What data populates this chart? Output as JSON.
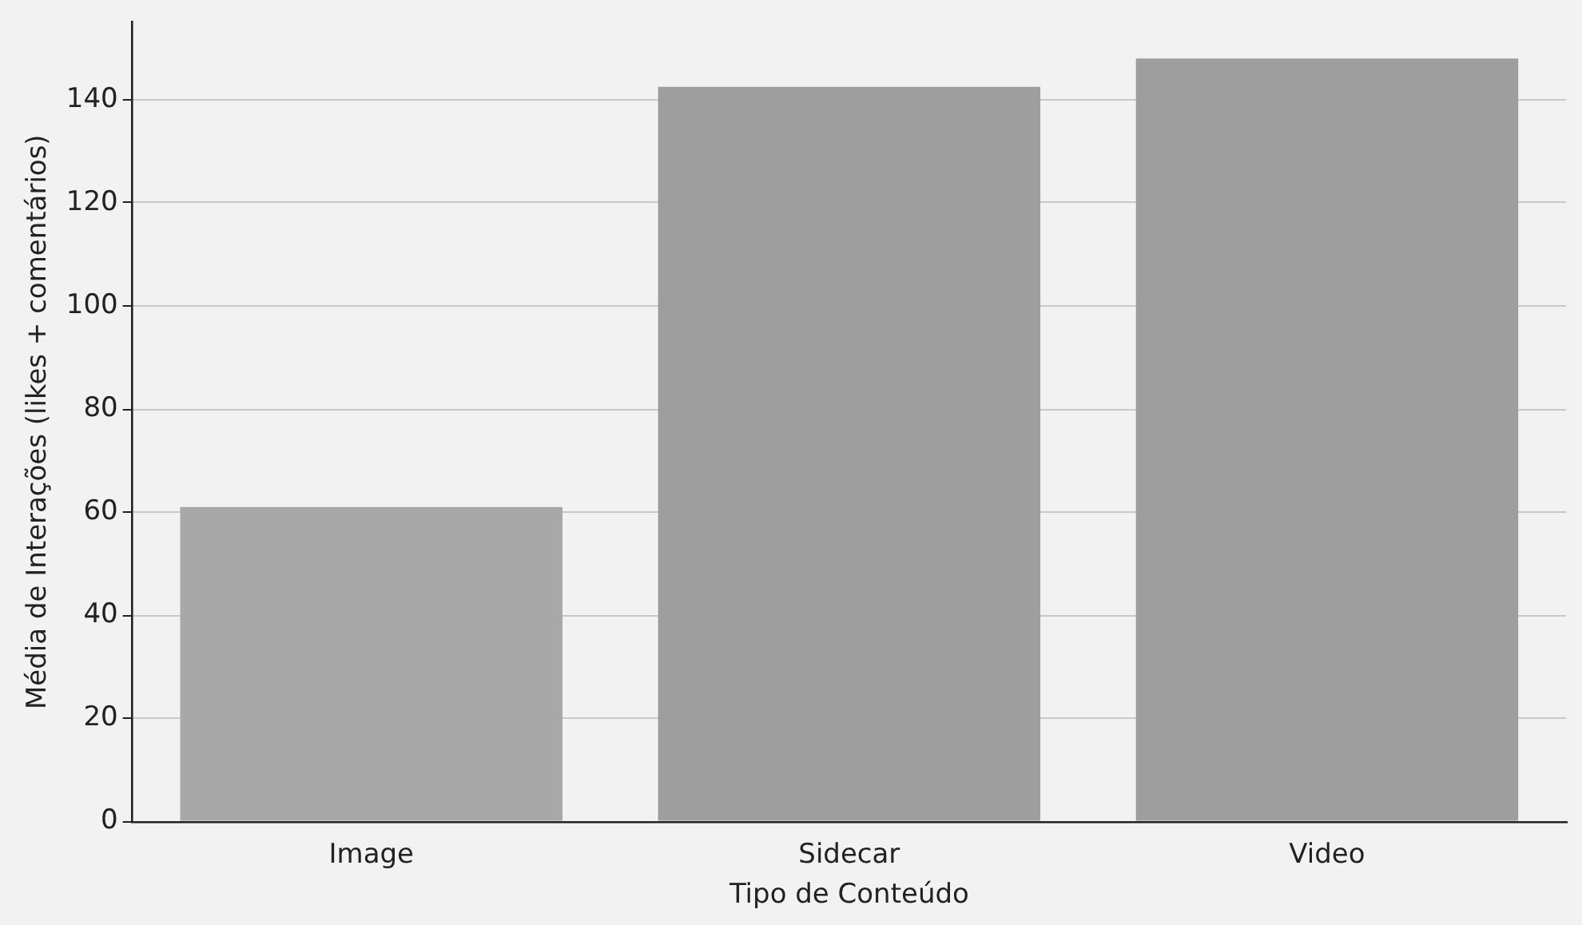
{
  "chart_data": {
    "type": "bar",
    "xlabel": "Tipo de Conteúdo",
    "ylabel": "Média de Interações (likes + comentários)",
    "categories": [
      "Image",
      "Sidecar",
      "Video"
    ],
    "values": [
      61,
      142.5,
      148
    ],
    "colors": [
      "#a8a8a8",
      "#9e9e9e",
      "#9e9e9e"
    ],
    "ylim": [
      0,
      155
    ],
    "yticks": [
      0,
      20,
      40,
      60,
      80,
      100,
      120,
      140
    ],
    "grid": "y",
    "legend": false
  }
}
